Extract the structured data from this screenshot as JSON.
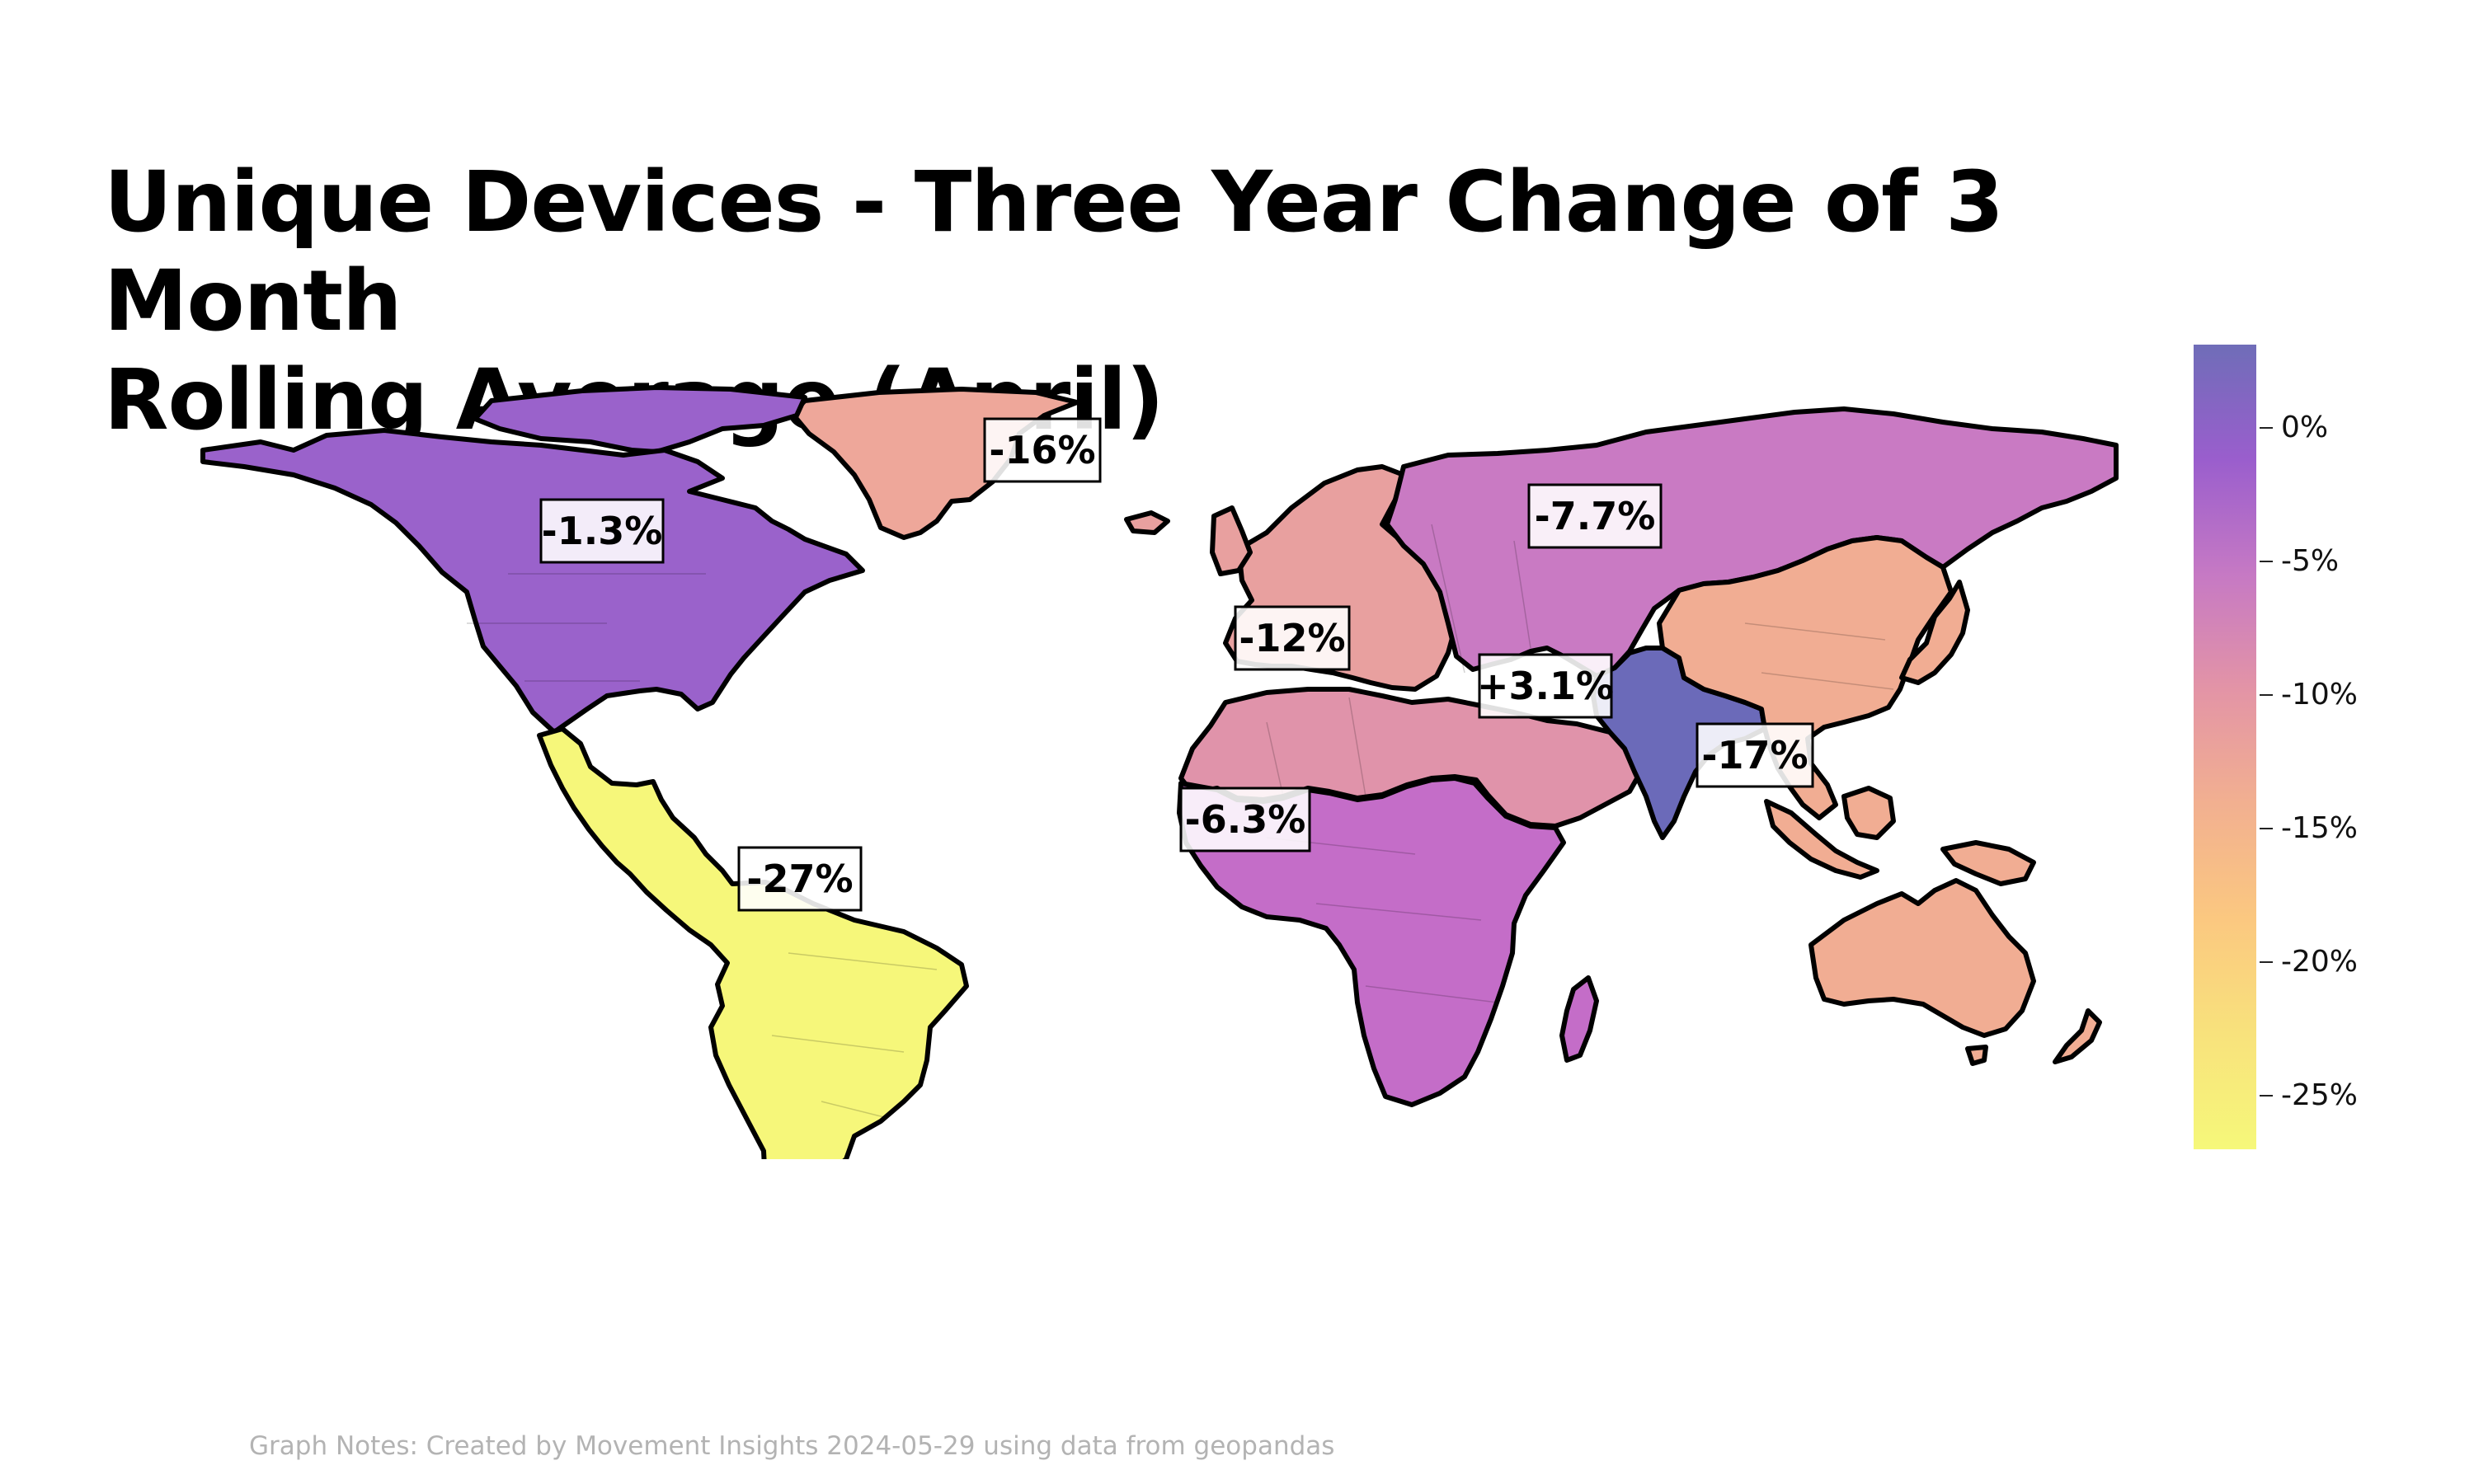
{
  "title": {
    "line1": "Unique Devices - Three Year Change of 3 Month",
    "line2": "Rolling Average (April)"
  },
  "colorbar": {
    "colormap": "plasma_r",
    "colors_top_to_bottom": [
      "#6f6db8",
      "#9a5ecd",
      "#c679c4",
      "#e394a6",
      "#f2b090",
      "#fbc880",
      "#f8e27c",
      "#f6f87a"
    ],
    "min_pct": -27,
    "max_pct": 3.1,
    "ticks": [
      {
        "value": 0,
        "label": "0%"
      },
      {
        "value": -5,
        "label": "-5%"
      },
      {
        "value": -10,
        "label": "-10%"
      },
      {
        "value": -15,
        "label": "-15%"
      },
      {
        "value": -20,
        "label": "-20%"
      },
      {
        "value": -25,
        "label": "-25%"
      }
    ]
  },
  "regions": [
    {
      "name": "North America",
      "value_pct": -1.3,
      "label": "-1.3%",
      "color": "#9a62cb"
    },
    {
      "name": "Greenland",
      "value_pct": -16,
      "label": "-16%",
      "color": "#eea79a"
    },
    {
      "name": "Latin America",
      "value_pct": -27,
      "label": "-27%",
      "color": "#f6f77a"
    },
    {
      "name": "Europe",
      "value_pct": -12,
      "label": "-12%",
      "color": "#e8a09f"
    },
    {
      "name": "Middle East & North Africa",
      "value_pct": -12,
      "label": "-12%",
      "color": "#e093aa"
    },
    {
      "name": "Sub-Saharan Africa",
      "value_pct": -6.3,
      "label": "-6.3%",
      "color": "#c46dc8"
    },
    {
      "name": "Russia & Central Asia",
      "value_pct": -7.7,
      "label": "-7.7%",
      "color": "#c97ac3"
    },
    {
      "name": "India",
      "value_pct": 3.1,
      "label": "+3.1%",
      "color": "#6b6ab9"
    },
    {
      "name": "East Asia & Pacific",
      "value_pct": -17,
      "label": "-17%",
      "color": "#f1ad93"
    }
  ],
  "note": "Graph Notes: Created by Movement Insights 2024-05-29 using data from geopandas"
}
